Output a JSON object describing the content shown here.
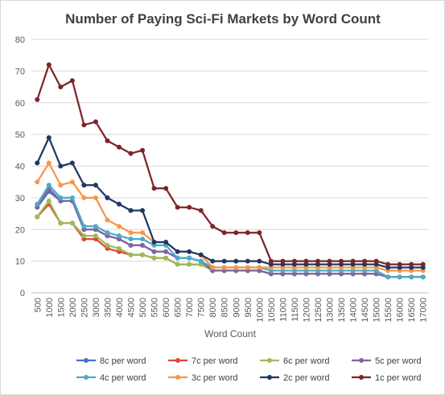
{
  "chart_data": {
    "type": "line",
    "title": "Number of Paying Sci-Fi Markets by Word Count",
    "xlabel": "Word Count",
    "ylabel": "",
    "ylim": [
      0,
      80
    ],
    "yticks": [
      0,
      10,
      20,
      30,
      40,
      50,
      60,
      70,
      80
    ],
    "grid": true,
    "legend_position": "bottom",
    "categories": [
      "500",
      "1000",
      "1500",
      "2000",
      "2500",
      "3000",
      "3500",
      "4000",
      "4500",
      "5000",
      "5500",
      "6000",
      "6500",
      "7000",
      "7500",
      "8000",
      "8500",
      "9000",
      "9500",
      "10000",
      "10500",
      "11000",
      "11500",
      "12000",
      "12500",
      "13000",
      "13500",
      "14000",
      "14500",
      "15000",
      "15500",
      "16000",
      "16500",
      "17000"
    ],
    "series": [
      {
        "name": "8c per word",
        "color": "#4472c4",
        "values": [
          27,
          32,
          29,
          29,
          20,
          20,
          18,
          17,
          15,
          15,
          13,
          13,
          11,
          11,
          10,
          7,
          7,
          7,
          7,
          7,
          6,
          6,
          6,
          6,
          6,
          6,
          6,
          6,
          6,
          6,
          5,
          5,
          5,
          5
        ]
      },
      {
        "name": "7c per word",
        "color": "#e0463a",
        "values": [
          24,
          28,
          22,
          22,
          17,
          17,
          14,
          13,
          12,
          12,
          11,
          11,
          9,
          9,
          9,
          7,
          7,
          7,
          7,
          7,
          6,
          6,
          6,
          6,
          6,
          6,
          6,
          6,
          6,
          6,
          5,
          5,
          5,
          5
        ]
      },
      {
        "name": "6c per word",
        "color": "#9bbb59",
        "values": [
          24,
          29,
          22,
          22,
          18,
          18,
          15,
          14,
          12,
          12,
          11,
          11,
          9,
          9,
          9,
          7,
          7,
          7,
          7,
          7,
          6,
          6,
          6,
          6,
          6,
          6,
          6,
          6,
          6,
          6,
          5,
          5,
          5,
          5
        ]
      },
      {
        "name": "5c per word",
        "color": "#8064a2",
        "values": [
          27,
          33,
          29,
          29,
          20,
          20,
          18,
          17,
          15,
          15,
          13,
          13,
          11,
          11,
          10,
          7,
          7,
          7,
          7,
          7,
          6,
          6,
          6,
          6,
          6,
          6,
          6,
          6,
          6,
          6,
          5,
          5,
          5,
          5
        ]
      },
      {
        "name": "4c per word",
        "color": "#4bacc6",
        "values": [
          28,
          34,
          30,
          30,
          21,
          21,
          19,
          18,
          17,
          17,
          15,
          15,
          11,
          11,
          10,
          8,
          8,
          8,
          8,
          8,
          7,
          7,
          7,
          7,
          7,
          7,
          7,
          7,
          7,
          7,
          5,
          5,
          5,
          5
        ]
      },
      {
        "name": "3c per word",
        "color": "#f79646",
        "values": [
          35,
          41,
          34,
          35,
          30,
          30,
          23,
          21,
          19,
          19,
          16,
          16,
          13,
          13,
          12,
          8,
          8,
          8,
          8,
          8,
          8,
          8,
          8,
          8,
          8,
          8,
          8,
          8,
          8,
          8,
          7,
          7,
          7,
          7
        ]
      },
      {
        "name": "2c per word",
        "color": "#1f3864",
        "values": [
          41,
          49,
          40,
          41,
          34,
          34,
          30,
          28,
          26,
          26,
          16,
          16,
          13,
          13,
          12,
          10,
          10,
          10,
          10,
          10,
          9,
          9,
          9,
          9,
          9,
          9,
          9,
          9,
          9,
          9,
          8,
          8,
          8,
          8
        ]
      },
      {
        "name": "1c per word",
        "color": "#7b2528",
        "values": [
          61,
          72,
          65,
          67,
          53,
          54,
          48,
          46,
          44,
          45,
          33,
          33,
          27,
          27,
          26,
          21,
          19,
          19,
          19,
          19,
          10,
          10,
          10,
          10,
          10,
          10,
          10,
          10,
          10,
          10,
          9,
          9,
          9,
          9
        ]
      }
    ]
  }
}
